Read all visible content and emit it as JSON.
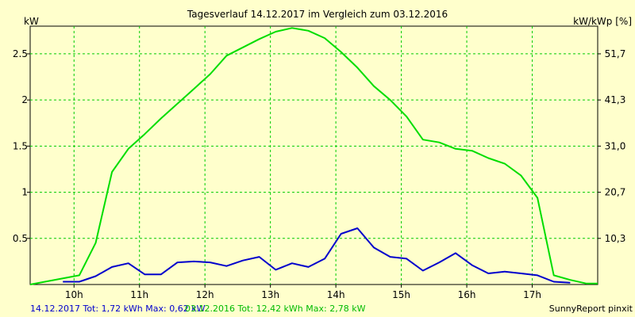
{
  "chart_data": {
    "type": "line",
    "title": "Tagesverlauf 14.12.2017 im Vergleich zum 03.12.2016",
    "ylabel_left": "kW",
    "ylabel_right": "kW/kWp [%]",
    "xlim": [
      9.33,
      18.0
    ],
    "ylim": [
      0,
      2.8
    ],
    "x_ticks": [
      {
        "value": 10,
        "label": "10h"
      },
      {
        "value": 11,
        "label": "11h"
      },
      {
        "value": 12,
        "label": "12h"
      },
      {
        "value": 13,
        "label": "13h"
      },
      {
        "value": 14,
        "label": "14h"
      },
      {
        "value": 15,
        "label": "15h"
      },
      {
        "value": 16,
        "label": "16h"
      },
      {
        "value": 17,
        "label": "17h"
      }
    ],
    "y_ticks_left": [
      {
        "value": 0.5,
        "label": "0.5"
      },
      {
        "value": 1,
        "label": "1"
      },
      {
        "value": 1.5,
        "label": "1.5"
      },
      {
        "value": 2,
        "label": "2"
      },
      {
        "value": 2.5,
        "label": "2.5"
      }
    ],
    "y_ticks_right": [
      {
        "value": 0.5,
        "label": "10,3"
      },
      {
        "value": 1,
        "label": "20,7"
      },
      {
        "value": 1.5,
        "label": "31,0"
      },
      {
        "value": 2,
        "label": "41,3"
      },
      {
        "value": 2.5,
        "label": "51,7"
      }
    ],
    "grid": true,
    "series": [
      {
        "color": "#00dd00",
        "points": [
          [
            9.33,
            0.0
          ],
          [
            10.08,
            0.1
          ],
          [
            10.33,
            0.45
          ],
          [
            10.58,
            1.22
          ],
          [
            10.83,
            1.47
          ],
          [
            11.08,
            1.63
          ],
          [
            11.33,
            1.8
          ],
          [
            11.58,
            1.96
          ],
          [
            11.83,
            2.12
          ],
          [
            12.08,
            2.28
          ],
          [
            12.33,
            2.48
          ],
          [
            12.58,
            2.57
          ],
          [
            12.83,
            2.66
          ],
          [
            13.08,
            2.74
          ],
          [
            13.33,
            2.78
          ],
          [
            13.58,
            2.75
          ],
          [
            13.83,
            2.67
          ],
          [
            14.08,
            2.52
          ],
          [
            14.33,
            2.35
          ],
          [
            14.58,
            2.15
          ],
          [
            14.83,
            2.0
          ],
          [
            15.08,
            1.82
          ],
          [
            15.33,
            1.57
          ],
          [
            15.58,
            1.54
          ],
          [
            15.83,
            1.47
          ],
          [
            16.08,
            1.45
          ],
          [
            16.33,
            1.37
          ],
          [
            16.58,
            1.31
          ],
          [
            16.83,
            1.18
          ],
          [
            17.08,
            0.94
          ],
          [
            17.33,
            0.1
          ],
          [
            17.58,
            0.05
          ],
          [
            17.83,
            0.01
          ],
          [
            18.0,
            0.01
          ]
        ]
      },
      {
        "color": "#0000cc",
        "points": [
          [
            9.83,
            0.03
          ],
          [
            10.08,
            0.03
          ],
          [
            10.33,
            0.09
          ],
          [
            10.58,
            0.19
          ],
          [
            10.83,
            0.23
          ],
          [
            11.08,
            0.11
          ],
          [
            11.33,
            0.11
          ],
          [
            11.58,
            0.24
          ],
          [
            11.83,
            0.25
          ],
          [
            12.08,
            0.24
          ],
          [
            12.33,
            0.2
          ],
          [
            12.58,
            0.26
          ],
          [
            12.83,
            0.3
          ],
          [
            13.08,
            0.16
          ],
          [
            13.33,
            0.23
          ],
          [
            13.58,
            0.19
          ],
          [
            13.83,
            0.28
          ],
          [
            14.08,
            0.55
          ],
          [
            14.33,
            0.61
          ],
          [
            14.58,
            0.4
          ],
          [
            14.83,
            0.3
          ],
          [
            15.08,
            0.28
          ],
          [
            15.33,
            0.15
          ],
          [
            15.58,
            0.24
          ],
          [
            15.83,
            0.34
          ],
          [
            16.08,
            0.21
          ],
          [
            16.33,
            0.12
          ],
          [
            16.58,
            0.14
          ],
          [
            16.83,
            0.12
          ],
          [
            17.08,
            0.1
          ],
          [
            17.33,
            0.03
          ],
          [
            17.58,
            0.02
          ]
        ]
      }
    ]
  },
  "footer": {
    "series_2017": "14.12.2017 Tot: 1,72 kWh Max: 0,62 kW",
    "series_2016": "03.12.2016 Tot: 12,42 kWh Max: 2,78 kW",
    "credit": "SunnyReport pinxit"
  }
}
